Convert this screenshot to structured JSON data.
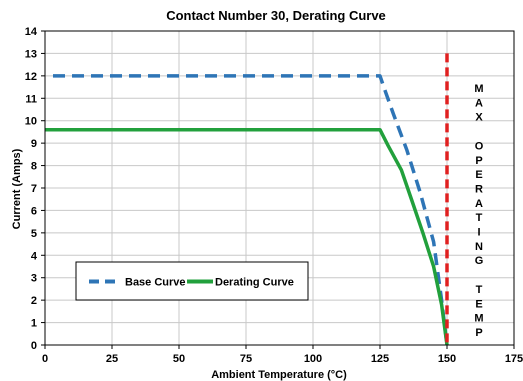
{
  "chart_data": {
    "type": "line",
    "title": "Contact Number 30, Derating Curve",
    "xlabel": "Ambient Temperature (°C)",
    "ylabel": "Current (Amps)",
    "xlim": [
      0,
      175
    ],
    "ylim": [
      0,
      14
    ],
    "x_ticks": [
      0,
      25,
      50,
      75,
      100,
      125,
      150,
      175
    ],
    "y_ticks": [
      0,
      1,
      2,
      3,
      4,
      5,
      6,
      7,
      8,
      9,
      10,
      11,
      12,
      13,
      14
    ],
    "grid": true,
    "legend_position": "bottom-left",
    "series": [
      {
        "name": "Base Curve",
        "color": "#2E75B6",
        "style": "dashed",
        "points": [
          [
            3,
            12
          ],
          [
            125,
            12
          ],
          [
            127,
            11.3
          ],
          [
            130,
            10.3
          ],
          [
            135,
            8.7
          ],
          [
            140,
            6.8
          ],
          [
            145,
            4.6
          ],
          [
            148,
            2.0
          ],
          [
            150,
            0
          ]
        ]
      },
      {
        "name": "Derating Curve",
        "color": "#22A03C",
        "style": "solid",
        "points": [
          [
            0,
            9.6
          ],
          [
            125,
            9.6
          ],
          [
            128,
            8.9
          ],
          [
            133,
            7.8
          ],
          [
            137,
            6.4
          ],
          [
            141,
            5.0
          ],
          [
            145,
            3.5
          ],
          [
            148,
            1.8
          ],
          [
            150,
            0
          ]
        ]
      }
    ],
    "reference_line": {
      "x": 150,
      "y_range": [
        0,
        13
      ],
      "color": "#E02020",
      "style": "dashed",
      "label_letters": [
        "M",
        "A",
        "X",
        "",
        "O",
        "P",
        "E",
        "R",
        "A",
        "T",
        "I",
        "N",
        "G",
        "",
        "T",
        "E",
        "M",
        "P"
      ]
    }
  }
}
